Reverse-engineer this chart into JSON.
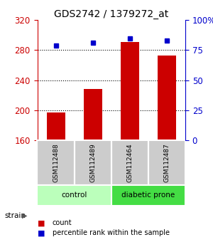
{
  "title": "GDS2742 / 1379272_at",
  "samples": [
    "GSM112488",
    "GSM112489",
    "GSM112464",
    "GSM112487"
  ],
  "counts": [
    197,
    228,
    291,
    273
  ],
  "percentiles": [
    79,
    81,
    85,
    83
  ],
  "ylim_left": [
    160,
    320
  ],
  "ylim_right": [
    0,
    100
  ],
  "yticks_left": [
    160,
    200,
    240,
    280,
    320
  ],
  "yticks_right": [
    0,
    25,
    50,
    75,
    100
  ],
  "bar_color": "#cc0000",
  "dot_color": "#0000cc",
  "groups": [
    {
      "label": "control",
      "indices": [
        0,
        1
      ],
      "color": "#bbffbb"
    },
    {
      "label": "diabetic prone",
      "indices": [
        2,
        3
      ],
      "color": "#44dd44"
    }
  ],
  "left_axis_color": "#cc0000",
  "right_axis_color": "#0000cc",
  "bg_color": "#ffffff",
  "sample_box_color": "#cccccc",
  "bar_width": 0.5,
  "figsize": [
    3.0,
    3.54
  ],
  "dpi": 100
}
